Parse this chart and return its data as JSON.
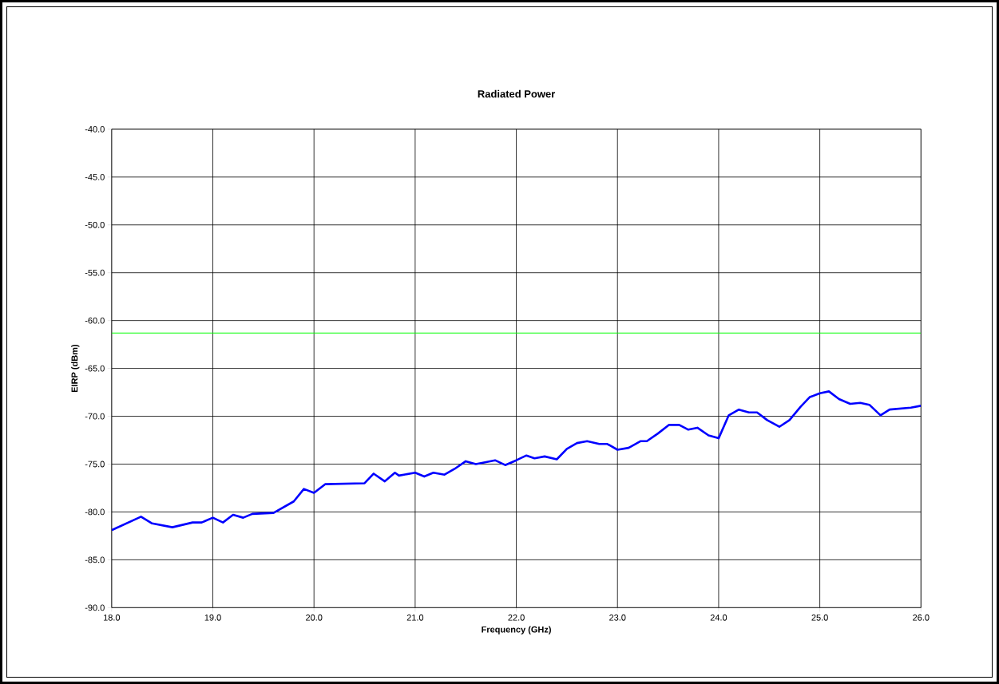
{
  "chart_data": {
    "type": "line",
    "title": "Radiated Power",
    "xlabel": "Frequency (GHz)",
    "ylabel": "EIRP (dBm)",
    "xlim": [
      18,
      26
    ],
    "xticks": [
      {
        "value": 18,
        "label": "18.0"
      },
      {
        "value": 19,
        "label": "19.0"
      },
      {
        "value": 20,
        "label": "20.0"
      },
      {
        "value": 21,
        "label": "21.0"
      },
      {
        "value": 22,
        "label": "22.0"
      },
      {
        "value": 23,
        "label": "23.0"
      },
      {
        "value": 24,
        "label": "24.0"
      },
      {
        "value": 25,
        "label": "25.0"
      },
      {
        "value": 26,
        "label": "26.0"
      }
    ],
    "ylim": [
      -90,
      -40
    ],
    "yticks": [
      {
        "value": -90,
        "label": "-90.0"
      },
      {
        "value": -85,
        "label": "-85.0"
      },
      {
        "value": -80,
        "label": "-80.0"
      },
      {
        "value": -75,
        "label": "-75.0"
      },
      {
        "value": -70,
        "label": "-70.0"
      },
      {
        "value": -65,
        "label": "-65.0"
      },
      {
        "value": -60,
        "label": "-60.0"
      },
      {
        "value": -55,
        "label": "-55.0"
      },
      {
        "value": -50,
        "label": "-50.0"
      },
      {
        "value": -45,
        "label": "-45.0"
      },
      {
        "value": -40,
        "label": "-40.0"
      }
    ],
    "grid": true,
    "marker": "none",
    "line_style": "solid",
    "ref_lines": [
      {
        "axis": "y",
        "value": -61.3,
        "color": "#00ff00"
      }
    ],
    "series": [
      {
        "color": "#0000ff",
        "x": [
          18.0,
          18.29,
          18.4,
          18.6,
          18.8,
          18.89,
          19.0,
          19.1,
          19.2,
          19.3,
          19.39,
          19.6,
          19.8,
          19.9,
          20.0,
          20.11,
          20.5,
          20.59,
          20.7,
          20.8,
          20.84,
          21.0,
          21.09,
          21.18,
          21.29,
          21.39,
          21.5,
          21.6,
          21.79,
          21.89,
          22.0,
          22.1,
          22.18,
          22.28,
          22.4,
          22.5,
          22.6,
          22.7,
          22.82,
          22.9,
          23.0,
          23.11,
          23.23,
          23.29,
          23.4,
          23.51,
          23.61,
          23.7,
          23.79,
          23.9,
          24.0,
          24.1,
          24.2,
          24.3,
          24.38,
          24.48,
          24.6,
          24.7,
          24.81,
          24.9,
          25.0,
          25.09,
          25.19,
          25.3,
          25.4,
          25.49,
          25.6,
          25.69,
          25.9,
          26.0
        ],
        "values": [
          -81.9,
          -80.5,
          -81.2,
          -81.6,
          -81.1,
          -81.1,
          -80.6,
          -81.1,
          -80.3,
          -80.6,
          -80.2,
          -80.1,
          -78.9,
          -77.6,
          -78.0,
          -77.1,
          -77.0,
          -76.0,
          -76.8,
          -75.9,
          -76.2,
          -75.9,
          -76.3,
          -75.9,
          -76.1,
          -75.5,
          -74.7,
          -75.0,
          -74.6,
          -75.1,
          -74.6,
          -74.1,
          -74.4,
          -74.2,
          -74.5,
          -73.4,
          -72.8,
          -72.6,
          -72.9,
          -72.9,
          -73.5,
          -73.3,
          -72.6,
          -72.6,
          -71.8,
          -70.9,
          -70.9,
          -71.4,
          -71.2,
          -72.0,
          -72.3,
          -69.9,
          -69.3,
          -69.6,
          -69.6,
          -70.4,
          -71.1,
          -70.4,
          -69.0,
          -68.0,
          -67.6,
          -67.4,
          -68.2,
          -68.7,
          -68.6,
          -68.8,
          -69.9,
          -69.3,
          -69.1,
          -68.9
        ]
      }
    ]
  }
}
